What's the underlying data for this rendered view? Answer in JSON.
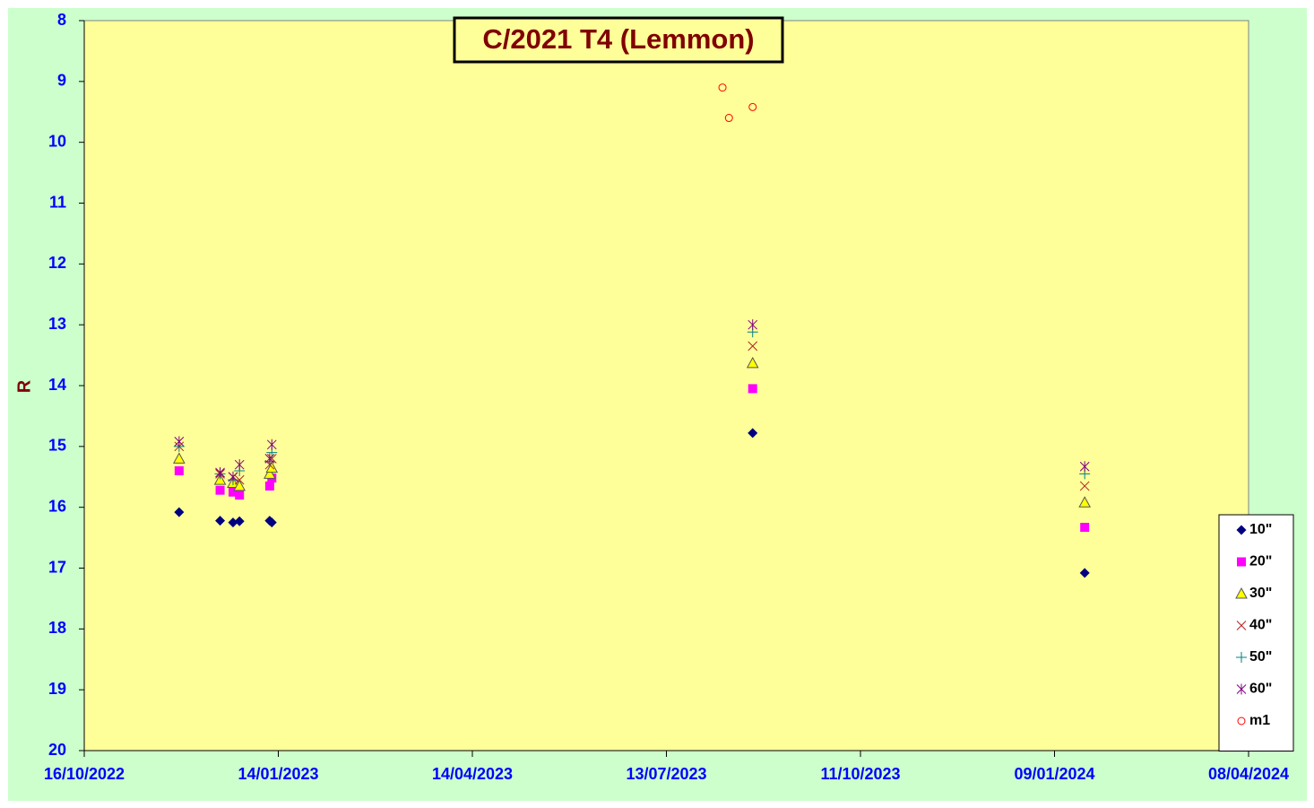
{
  "chart_data": {
    "type": "scatter",
    "title": "C/2021 T4 (Lemmon)",
    "y_label": "R",
    "xlim": [
      "16/10/2022",
      "08/04/2024"
    ],
    "xticks": [
      "16/10/2022",
      "14/01/2023",
      "14/04/2023",
      "13/07/2023",
      "11/10/2023",
      "09/01/2024",
      "08/04/2024"
    ],
    "ylim": [
      8,
      20
    ],
    "y_inverted": true,
    "yticks": [
      8,
      9,
      10,
      11,
      12,
      13,
      14,
      15,
      16,
      17,
      18,
      19,
      20
    ],
    "legend": "right",
    "series": [
      {
        "name": "10\"",
        "color": "#000080",
        "marker": "diamond",
        "x": [
          "29/11/2022",
          "18/12/2022",
          "24/12/2022",
          "27/12/2022",
          "10/01/2023",
          "11/01/2023",
          "22/08/2023",
          "23/01/2024"
        ],
        "values": [
          16.08,
          16.22,
          16.25,
          16.23,
          16.22,
          16.25,
          14.78,
          17.08
        ]
      },
      {
        "name": "20\"",
        "color": "#ff00ff",
        "marker": "square",
        "x": [
          "29/11/2022",
          "18/12/2022",
          "24/12/2022",
          "27/12/2022",
          "10/01/2023",
          "11/01/2023",
          "22/08/2023",
          "23/01/2024"
        ],
        "values": [
          15.4,
          15.72,
          15.75,
          15.8,
          15.65,
          15.52,
          14.05,
          16.33
        ]
      },
      {
        "name": "30\"",
        "color": "#ffff00",
        "marker": "triangle",
        "x": [
          "29/11/2022",
          "18/12/2022",
          "24/12/2022",
          "27/12/2022",
          "10/01/2023",
          "11/01/2023",
          "22/08/2023",
          "23/01/2024"
        ],
        "values": [
          15.2,
          15.55,
          15.6,
          15.65,
          15.45,
          15.35,
          13.63,
          15.92
        ]
      },
      {
        "name": "40\"",
        "color": "#b22222",
        "marker": "x",
        "x": [
          "29/11/2022",
          "18/12/2022",
          "24/12/2022",
          "27/12/2022",
          "10/01/2023",
          "11/01/2023",
          "22/08/2023",
          "23/01/2024"
        ],
        "values": [
          15.0,
          15.45,
          15.5,
          15.55,
          15.3,
          15.2,
          13.35,
          15.65
        ]
      },
      {
        "name": "50\"",
        "color": "#008080",
        "marker": "plus",
        "x": [
          "29/11/2022",
          "18/12/2022",
          "24/12/2022",
          "27/12/2022",
          "10/01/2023",
          "11/01/2023",
          "22/08/2023",
          "23/01/2024"
        ],
        "values": [
          15.0,
          15.45,
          15.55,
          15.4,
          15.25,
          15.1,
          13.12,
          15.45
        ]
      },
      {
        "name": "60\"",
        "color": "#800080",
        "marker": "asterisk",
        "x": [
          "29/11/2022",
          "18/12/2022",
          "24/12/2022",
          "27/12/2022",
          "10/01/2023",
          "11/01/2023",
          "22/08/2023",
          "23/01/2024"
        ],
        "values": [
          14.92,
          15.43,
          15.5,
          15.3,
          15.2,
          14.97,
          13.0,
          15.33
        ]
      },
      {
        "name": "m1",
        "color": "#ff0000",
        "marker": "circle",
        "x": [
          "08/08/2023",
          "11/08/2023",
          "22/08/2023"
        ],
        "values": [
          9.1,
          9.6,
          9.42
        ]
      }
    ]
  }
}
